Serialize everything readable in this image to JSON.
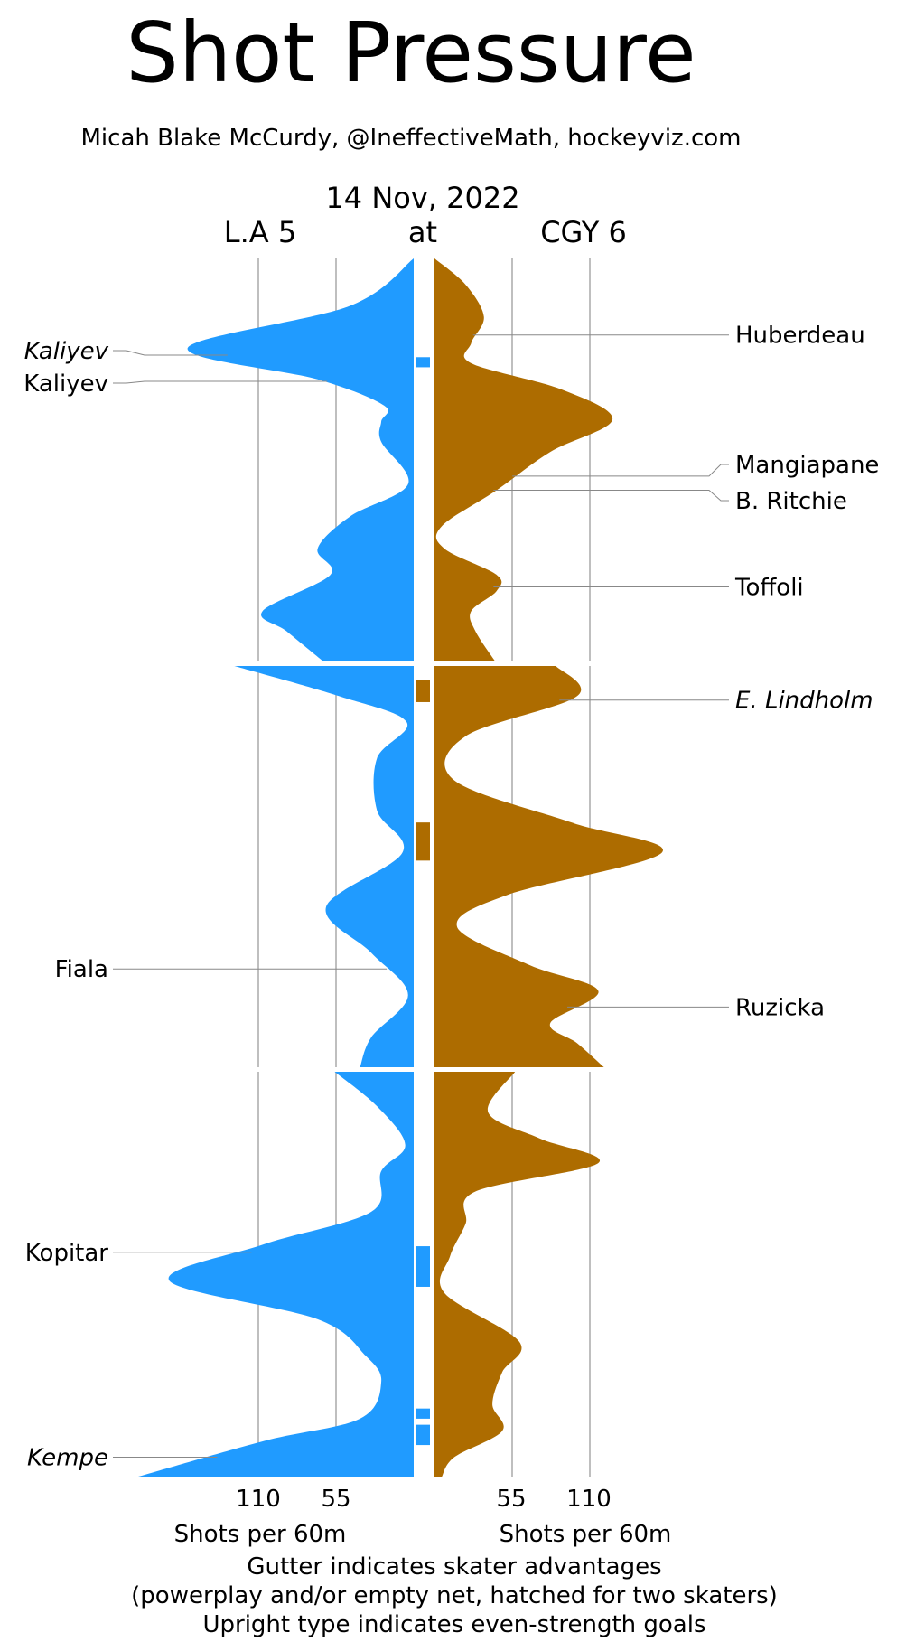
{
  "chart_data": {
    "type": "area",
    "title": "Shot Pressure",
    "subtitle": "Micah Blake McCurdy, @IneffectiveMath, hockeyviz.com",
    "date": "14 Nov, 2022",
    "away_label": "L.A 5",
    "at_label": "at",
    "home_label": "CGY 6",
    "xlabel_left": "Shots per 60m",
    "xlabel_right": "Shots per 60m",
    "ticks_left": [
      "110",
      "55"
    ],
    "ticks_right": [
      "55",
      "110"
    ],
    "tick_values": [
      55,
      110
    ],
    "footer": [
      "Gutter indicates skater advantages",
      "(powerplay and/or empty net, hatched for two skaters)",
      "Upright type indicates even-strength goals"
    ],
    "colors": {
      "away": "#209bff",
      "home": "#ad6c00"
    },
    "y_unit": "game minute",
    "series": [
      {
        "name": "L.A",
        "points": [
          [
            0,
            0
          ],
          [
            2.35,
            45
          ],
          [
            4.44,
            160
          ],
          [
            6.0,
            68
          ],
          [
            7.3,
            21
          ],
          [
            8.1,
            23
          ],
          [
            9.1,
            23
          ],
          [
            11.2,
            4
          ],
          [
            12.8,
            45
          ],
          [
            14.4,
            68
          ],
          [
            15.7,
            59
          ],
          [
            17.5,
            107
          ],
          [
            18.5,
            90
          ],
          [
            20,
            64
          ],
          [
            20,
            127
          ],
          [
            21.5,
            53
          ],
          [
            22.8,
            5
          ],
          [
            24.6,
            26
          ],
          [
            27.2,
            26
          ],
          [
            29.3,
            8
          ],
          [
            32.0,
            62
          ],
          [
            34.3,
            30
          ],
          [
            36.4,
            4
          ],
          [
            38.5,
            30
          ],
          [
            40,
            38
          ],
          [
            40,
            56
          ],
          [
            41.7,
            26
          ],
          [
            43.6,
            6
          ],
          [
            44.9,
            23
          ],
          [
            46.9,
            30
          ],
          [
            48.5,
            106
          ],
          [
            50.3,
            173
          ],
          [
            52.2,
            68
          ],
          [
            54.0,
            34
          ],
          [
            55.3,
            23
          ],
          [
            57.1,
            38
          ],
          [
            58.2,
            106
          ],
          [
            60,
            197
          ]
        ]
      },
      {
        "name": "CGY",
        "points": [
          [
            0,
            0
          ],
          [
            1.3,
            22
          ],
          [
            2.9,
            35
          ],
          [
            4.2,
            26
          ],
          [
            5.2,
            26
          ],
          [
            6.5,
            90
          ],
          [
            8.0,
            126
          ],
          [
            9.6,
            82
          ],
          [
            11.5,
            44
          ],
          [
            13.3,
            5
          ],
          [
            14.4,
            7
          ],
          [
            15.7,
            44
          ],
          [
            16.5,
            44
          ],
          [
            17.5,
            26
          ],
          [
            18.5,
            29
          ],
          [
            20,
            43
          ],
          [
            20,
            86
          ],
          [
            21.5,
            101
          ],
          [
            23.5,
            22
          ],
          [
            25.7,
            14
          ],
          [
            27.8,
            97
          ],
          [
            29.3,
            161
          ],
          [
            31.4,
            52
          ],
          [
            33.0,
            16
          ],
          [
            34.9,
            67
          ],
          [
            36.2,
            116
          ],
          [
            37.8,
            82
          ],
          [
            38.8,
            101
          ],
          [
            40,
            120
          ],
          [
            40,
            57
          ],
          [
            42.0,
            38
          ],
          [
            43.3,
            75
          ],
          [
            44.5,
            116
          ],
          [
            45.9,
            29
          ],
          [
            47.5,
            22
          ],
          [
            49.1,
            11
          ],
          [
            50.9,
            7
          ],
          [
            53.3,
            60
          ],
          [
            54.8,
            48
          ],
          [
            56.4,
            41
          ],
          [
            57.7,
            48
          ],
          [
            59.0,
            14
          ],
          [
            60,
            5
          ]
        ]
      }
    ],
    "gutter_advantages": [
      {
        "team": "L.A",
        "start": 4.9,
        "end": 5.4
      },
      {
        "team": "CGY",
        "start": 20.7,
        "end": 21.8
      },
      {
        "team": "CGY",
        "start": 27.8,
        "end": 29.7
      },
      {
        "team": "L.A",
        "start": 48.6,
        "end": 50.6
      },
      {
        "team": "L.A",
        "start": 56.6,
        "end": 57.1
      },
      {
        "team": "L.A",
        "start": 57.4,
        "end": 58.4
      }
    ],
    "goals": [
      {
        "team": "L.A",
        "player": "Kaliyev",
        "minute": 4.8,
        "even_strength": false
      },
      {
        "team": "L.A",
        "player": "Kaliyev",
        "minute": 6.1,
        "even_strength": true
      },
      {
        "team": "L.A",
        "player": "Fiala",
        "minute": 35.1,
        "even_strength": true
      },
      {
        "team": "L.A",
        "player": "Kopitar",
        "minute": 48.9,
        "even_strength": true
      },
      {
        "team": "L.A",
        "player": "Kempe",
        "minute": 59.0,
        "even_strength": false
      },
      {
        "team": "CGY",
        "player": "Huberdeau",
        "minute": 3.8,
        "even_strength": true
      },
      {
        "team": "CGY",
        "player": "Mangiapane",
        "minute": 10.8,
        "even_strength": true
      },
      {
        "team": "CGY",
        "player": "B. Ritchie",
        "minute": 11.5,
        "even_strength": true
      },
      {
        "team": "CGY",
        "player": "Toffoli",
        "minute": 16.3,
        "even_strength": true
      },
      {
        "team": "CGY",
        "player": "E. Lindholm",
        "minute": 21.7,
        "even_strength": false
      },
      {
        "team": "CGY",
        "player": "Ruzicka",
        "minute": 37.0,
        "even_strength": true
      }
    ]
  }
}
